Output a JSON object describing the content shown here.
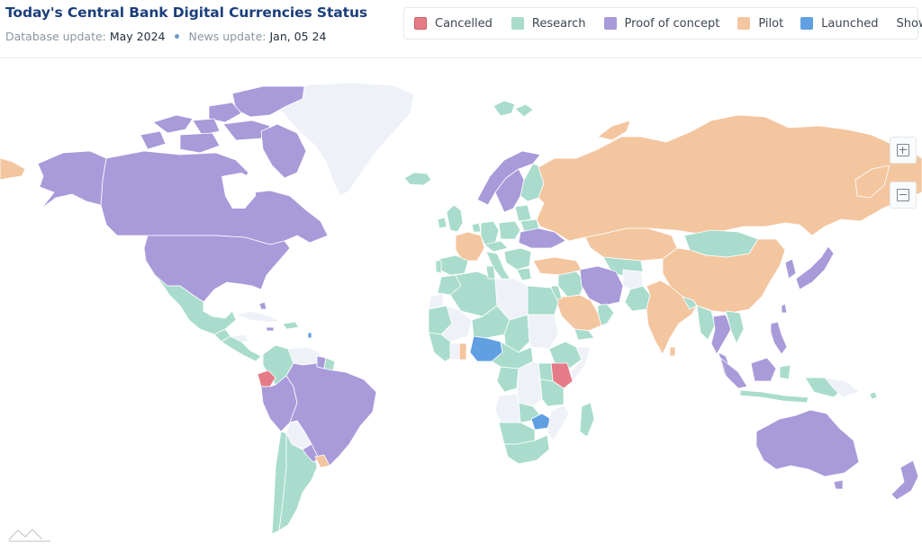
{
  "header": {
    "title": "Today's Central Bank Digital Currencies Status",
    "database_update_label": "Database update:",
    "database_update_value": "May 2024",
    "news_update_label": "News update:",
    "news_update_value": "Jan, 05 24"
  },
  "legend": {
    "items": [
      {
        "label": "Cancelled",
        "color": "#e57b86"
      },
      {
        "label": "Research",
        "color": "#a9dccd"
      },
      {
        "label": "Proof of concept",
        "color": "#a99ad9"
      },
      {
        "label": "Pilot",
        "color": "#f3c6a0"
      },
      {
        "label": "Launched",
        "color": "#5f9fe2"
      }
    ],
    "show_all_label": "Show all"
  },
  "map": {
    "colors": {
      "cancelled": "#e57b86",
      "research": "#a9dccd",
      "proof_of_concept": "#a99ad9",
      "pilot": "#f3c6a0",
      "launched": "#5f9fe2",
      "no_data": "#eef2f8",
      "border": "#ffffff",
      "ocean": "#ffffff"
    },
    "zoom_in_icon": "plus-box-icon",
    "zoom_out_icon": "minus-box-icon",
    "logo_icon": "mountain-logo-icon"
  }
}
